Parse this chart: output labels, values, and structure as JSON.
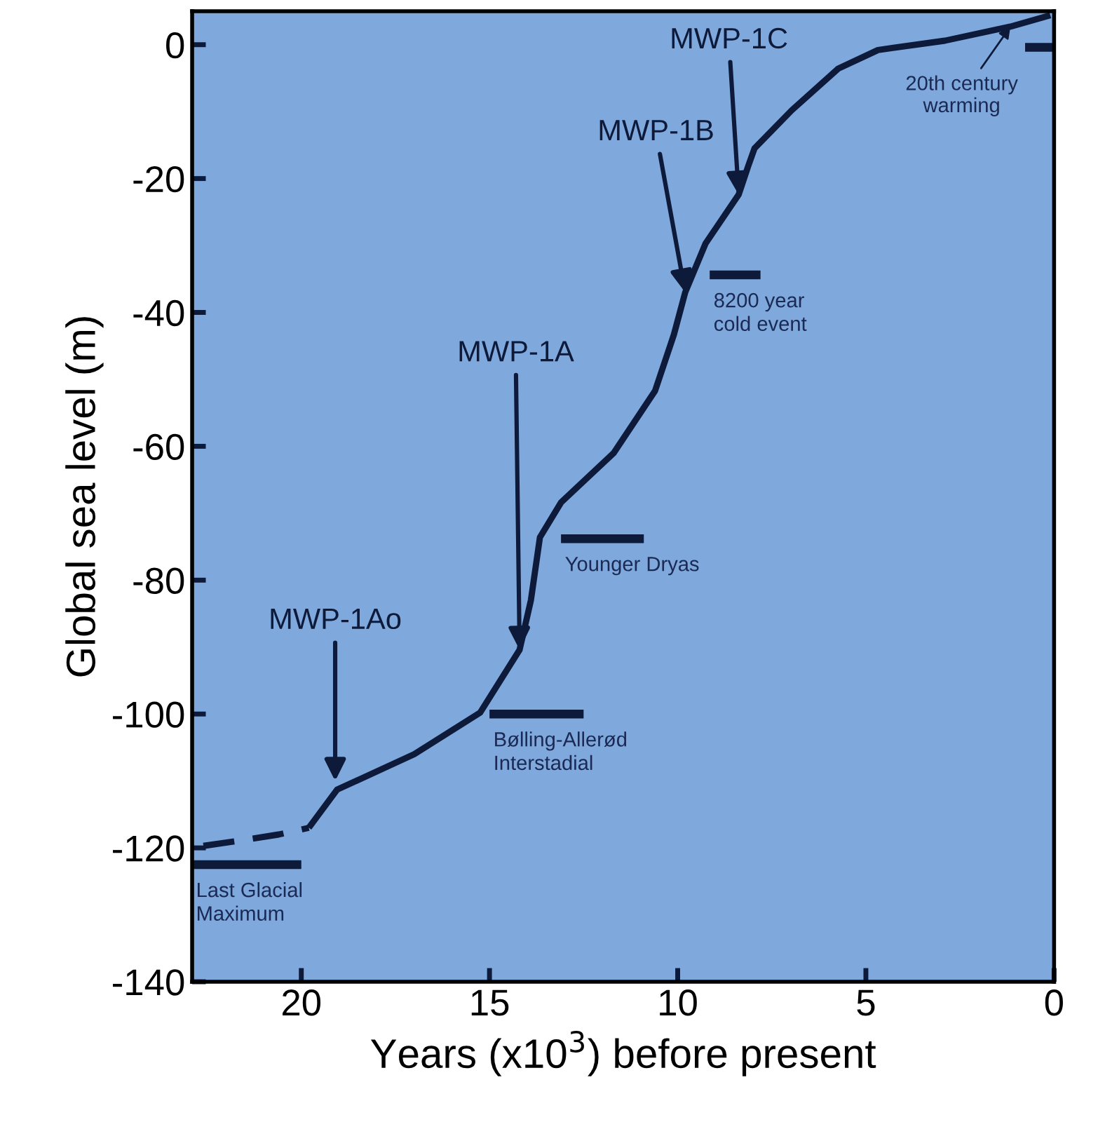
{
  "chart_data": {
    "type": "line",
    "xlabel": "Years (x10$^{3}$) before present",
    "ylabel": "Global sea level (m)",
    "xlim": [
      22.9,
      0
    ],
    "ylim": [
      -140,
      5
    ],
    "xticks": [
      20,
      15,
      10,
      5,
      0
    ],
    "yticks": [
      -140,
      -120,
      -100,
      -80,
      -60,
      -40,
      -20,
      0
    ],
    "grid": false,
    "legend": false,
    "marker": "none",
    "series": [
      {
        "color": "#0d1a3a",
        "line_style": "dashed",
        "x": [
          22.6,
          21.5,
          20.6,
          19.8
        ],
        "values": [
          -119.7,
          -118.8,
          -118,
          -117
        ]
      },
      {
        "color": "#0d1a3a",
        "line_style": "solid",
        "x": [
          19.8,
          19.05,
          17.0,
          15.25,
          14.2,
          13.9,
          13.66,
          13.1,
          11.7,
          10.6,
          10.1,
          9.8,
          9.26,
          8.38,
          8.13,
          7.96,
          6.97,
          5.74,
          4.68,
          2.9,
          1.16,
          0.1
        ],
        "values": [
          -117,
          -111.3,
          -106,
          -99.8,
          -90.4,
          -83,
          -73.6,
          -68.4,
          -61,
          -51.7,
          -43.3,
          -37,
          -29.7,
          -22.4,
          -18.2,
          -15.5,
          -9.8,
          -3.6,
          -0.8,
          0.6,
          2.7,
          4.4
        ]
      },
      {
        "name": "Last Glacial\nMaximum",
        "color": "#0d1a3a",
        "line_style": "solid",
        "x": [
          22.9,
          20.0
        ],
        "values": [
          -122.5,
          -122.5
        ]
      },
      {
        "name": "Bølling-Allerød\nInterstadial",
        "color": "#0d1a3a",
        "line_style": "solid",
        "x": [
          15.0,
          12.5
        ],
        "values": [
          -100,
          -100
        ]
      },
      {
        "name": "Younger Dryas",
        "color": "#0d1a3a",
        "line_style": "solid",
        "x": [
          13.1,
          10.9
        ],
        "values": [
          -73.8,
          -73.8
        ]
      },
      {
        "name": "8200 year\ncold event",
        "color": "#0d1a3a",
        "line_style": "solid",
        "x": [
          9.15,
          7.8
        ],
        "values": [
          -34.4,
          -34.4
        ]
      },
      {
        "color": "#0d1a3a",
        "line_style": "solid",
        "x": [
          0.77,
          0
        ],
        "values": [
          -0.4,
          -0.4
        ]
      }
    ],
    "annotations": [
      {
        "text": "MWP-1Ao",
        "x": 19.1,
        "y": -110
      },
      {
        "text": "MWP-1A",
        "x": 14.2,
        "y": -90.4
      },
      {
        "text": "MWP-1B",
        "x": 9.8,
        "y": -37
      },
      {
        "text": "MWP-1C",
        "x": 8.38,
        "y": -22.4
      },
      {
        "text": "20th century\nwarming",
        "x": 1.16,
        "y": 2.7
      }
    ]
  }
}
